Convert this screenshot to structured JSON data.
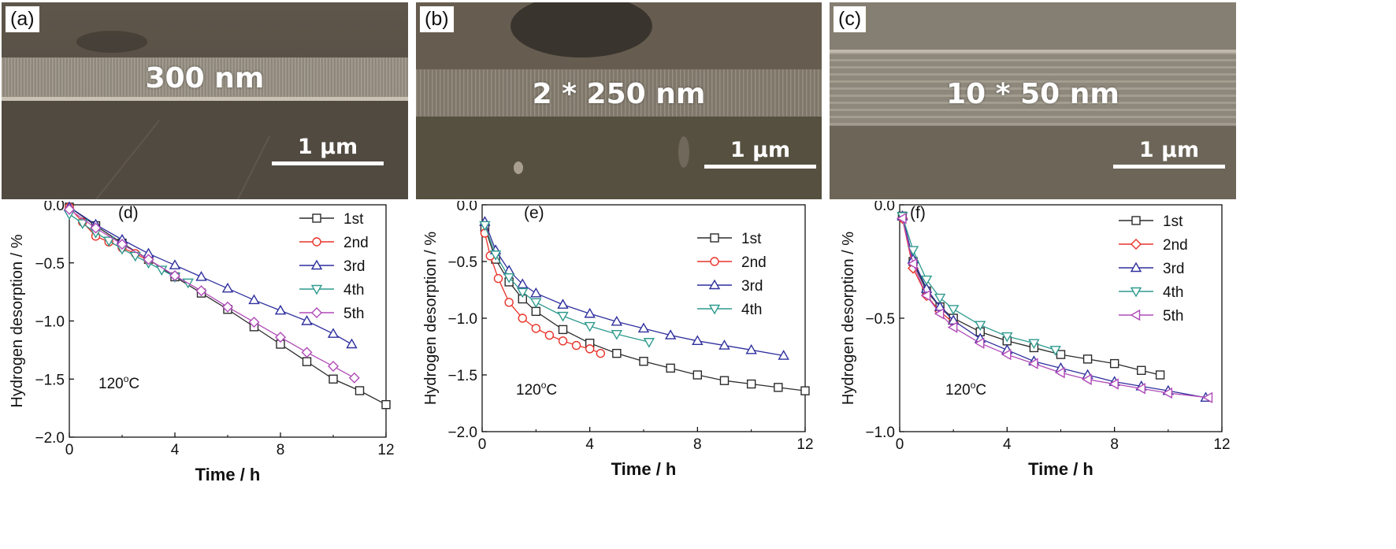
{
  "micrographs": [
    {
      "panel_label": "(a)",
      "thickness_label": "300 nm",
      "scale_label": "1 µm"
    },
    {
      "panel_label": "(b)",
      "thickness_label": "2 * 250 nm",
      "scale_label": "1 µm"
    },
    {
      "panel_label": "(c)",
      "thickness_label": "10 * 50 nm",
      "scale_label": "1 µm"
    }
  ],
  "chart_data": [
    {
      "type": "line",
      "panel_label": "(d)",
      "annotation": "120oC",
      "xlabel": "Time / h",
      "ylabel": "Hydrogen desorption / %",
      "xlim": [
        0,
        12
      ],
      "ylim": [
        -2.0,
        0.0
      ],
      "xticks": [
        "0",
        "4",
        "8",
        "12"
      ],
      "yticks": [
        "0.0",
        "-0.5",
        "-1.0",
        "-1.5",
        "-2.0"
      ],
      "legend_position": "top-right",
      "series": [
        {
          "name": "1st",
          "color": "#2b2b2b",
          "marker": "square",
          "x": [
            0,
            1,
            2,
            3,
            4,
            5,
            6,
            7,
            8,
            9,
            10,
            11,
            12
          ],
          "y": [
            -0.02,
            -0.18,
            -0.33,
            -0.47,
            -0.62,
            -0.76,
            -0.9,
            -1.05,
            -1.2,
            -1.35,
            -1.5,
            -1.6,
            -1.72
          ]
        },
        {
          "name": "2nd",
          "color": "#e8332a",
          "marker": "circle",
          "x": [
            0,
            0.5,
            1,
            1.5,
            2,
            2.5,
            3
          ],
          "y": [
            -0.02,
            -0.15,
            -0.27,
            -0.32,
            -0.37,
            -0.42,
            -0.48
          ]
        },
        {
          "name": "3rd",
          "color": "#2f2f9e",
          "marker": "triangle-up",
          "x": [
            0,
            1,
            2,
            3,
            4,
            5,
            6,
            7,
            8,
            9,
            10,
            10.7
          ],
          "y": [
            -0.02,
            -0.17,
            -0.3,
            -0.42,
            -0.52,
            -0.62,
            -0.72,
            -0.82,
            -0.91,
            -1.0,
            -1.11,
            -1.2
          ]
        },
        {
          "name": "4th",
          "color": "#2e9a8e",
          "marker": "triangle-down",
          "x": [
            0,
            0.5,
            1,
            1.5,
            2,
            2.5,
            3,
            3.5,
            4,
            4.5
          ],
          "y": [
            -0.08,
            -0.16,
            -0.24,
            -0.31,
            -0.38,
            -0.44,
            -0.5,
            -0.56,
            -0.62,
            -0.67
          ]
        },
        {
          "name": "5th",
          "color": "#b04ab8",
          "marker": "diamond",
          "x": [
            0,
            1,
            2,
            3,
            4,
            5,
            6,
            7,
            8,
            9,
            10,
            10.8
          ],
          "y": [
            -0.04,
            -0.2,
            -0.34,
            -0.47,
            -0.61,
            -0.74,
            -0.88,
            -1.01,
            -1.14,
            -1.27,
            -1.39,
            -1.49
          ]
        }
      ]
    },
    {
      "type": "line",
      "panel_label": "(e)",
      "annotation": "120oC",
      "xlabel": "Time / h",
      "ylabel": "Hydrogen desorption / %",
      "xlim": [
        0,
        12
      ],
      "ylim": [
        -2.0,
        0.0
      ],
      "xticks": [
        "0",
        "4",
        "8",
        "12"
      ],
      "yticks": [
        "0.0",
        "-0.5",
        "-1.0",
        "-1.5",
        "-2.0"
      ],
      "legend_position": "top-right",
      "series": [
        {
          "name": "1st",
          "color": "#2b2b2b",
          "marker": "square",
          "x": [
            0.1,
            0.5,
            1,
            1.5,
            2,
            3,
            4,
            5,
            6,
            7,
            8,
            9,
            10,
            11,
            12
          ],
          "y": [
            -0.2,
            -0.48,
            -0.68,
            -0.83,
            -0.94,
            -1.1,
            -1.22,
            -1.31,
            -1.38,
            -1.44,
            -1.5,
            -1.55,
            -1.58,
            -1.61,
            -1.64
          ]
        },
        {
          "name": "2nd",
          "color": "#e8332a",
          "marker": "circle",
          "x": [
            0.1,
            0.3,
            0.6,
            1,
            1.5,
            2,
            2.5,
            3,
            3.5,
            4,
            4.4
          ],
          "y": [
            -0.25,
            -0.45,
            -0.65,
            -0.86,
            -1.0,
            -1.09,
            -1.15,
            -1.2,
            -1.24,
            -1.27,
            -1.31
          ]
        },
        {
          "name": "3rd",
          "color": "#2f2f9e",
          "marker": "triangle-up",
          "x": [
            0.1,
            0.5,
            1,
            1.5,
            2,
            3,
            4,
            5,
            6,
            7,
            8,
            9,
            10,
            11.2
          ],
          "y": [
            -0.15,
            -0.4,
            -0.58,
            -0.7,
            -0.78,
            -0.88,
            -0.96,
            -1.03,
            -1.09,
            -1.15,
            -1.2,
            -1.24,
            -1.28,
            -1.33
          ]
        },
        {
          "name": "4th",
          "color": "#2e9a8e",
          "marker": "triangle-down",
          "x": [
            0.1,
            0.5,
            1,
            1.5,
            2,
            3,
            4,
            5,
            6.2
          ],
          "y": [
            -0.18,
            -0.44,
            -0.64,
            -0.77,
            -0.86,
            -0.98,
            -1.07,
            -1.14,
            -1.21
          ]
        }
      ]
    },
    {
      "type": "line",
      "panel_label": "(f)",
      "annotation": "120oC",
      "xlabel": "Time / h",
      "ylabel": "Hydrogen desorption / %",
      "xlim": [
        0,
        12
      ],
      "ylim": [
        -1.0,
        0.0
      ],
      "xticks": [
        "0",
        "4",
        "8",
        "12"
      ],
      "yticks": [
        "0.0",
        "-0.5",
        "-1.0"
      ],
      "legend_position": "top-right",
      "series": [
        {
          "name": "1st",
          "color": "#2b2b2b",
          "marker": "square",
          "x": [
            0.1,
            0.5,
            1,
            1.5,
            2,
            3,
            4,
            5,
            6,
            7,
            8,
            9,
            9.7
          ],
          "y": [
            -0.05,
            -0.25,
            -0.38,
            -0.45,
            -0.5,
            -0.56,
            -0.6,
            -0.63,
            -0.66,
            -0.68,
            -0.7,
            -0.73,
            -0.75
          ]
        },
        {
          "name": "2nd",
          "color": "#e8332a",
          "marker": "diamond",
          "x": [
            0.1,
            0.5,
            1,
            1.5,
            2
          ],
          "y": [
            -0.06,
            -0.28,
            -0.4,
            -0.47,
            -0.52
          ]
        },
        {
          "name": "3rd",
          "color": "#2f2f9e",
          "marker": "triangle-up",
          "x": [
            0.1,
            0.5,
            1,
            1.5,
            2,
            3,
            4,
            5,
            6,
            7,
            8,
            9,
            10,
            11.4
          ],
          "y": [
            -0.05,
            -0.24,
            -0.37,
            -0.45,
            -0.51,
            -0.59,
            -0.64,
            -0.69,
            -0.72,
            -0.75,
            -0.78,
            -0.8,
            -0.82,
            -0.85
          ]
        },
        {
          "name": "4th",
          "color": "#2e9a8e",
          "marker": "triangle-down",
          "x": [
            0.1,
            0.5,
            1,
            1.5,
            2,
            3,
            4,
            5,
            5.8
          ],
          "y": [
            -0.05,
            -0.2,
            -0.33,
            -0.41,
            -0.46,
            -0.53,
            -0.58,
            -0.61,
            -0.64
          ]
        },
        {
          "name": "5th",
          "color": "#b04ab8",
          "marker": "triangle-left",
          "x": [
            0.1,
            0.5,
            1,
            1.5,
            2,
            3,
            4,
            5,
            6,
            7,
            8,
            9,
            10,
            11.5
          ],
          "y": [
            -0.06,
            -0.26,
            -0.4,
            -0.48,
            -0.54,
            -0.61,
            -0.66,
            -0.7,
            -0.74,
            -0.77,
            -0.79,
            -0.81,
            -0.83,
            -0.85
          ]
        }
      ]
    }
  ]
}
